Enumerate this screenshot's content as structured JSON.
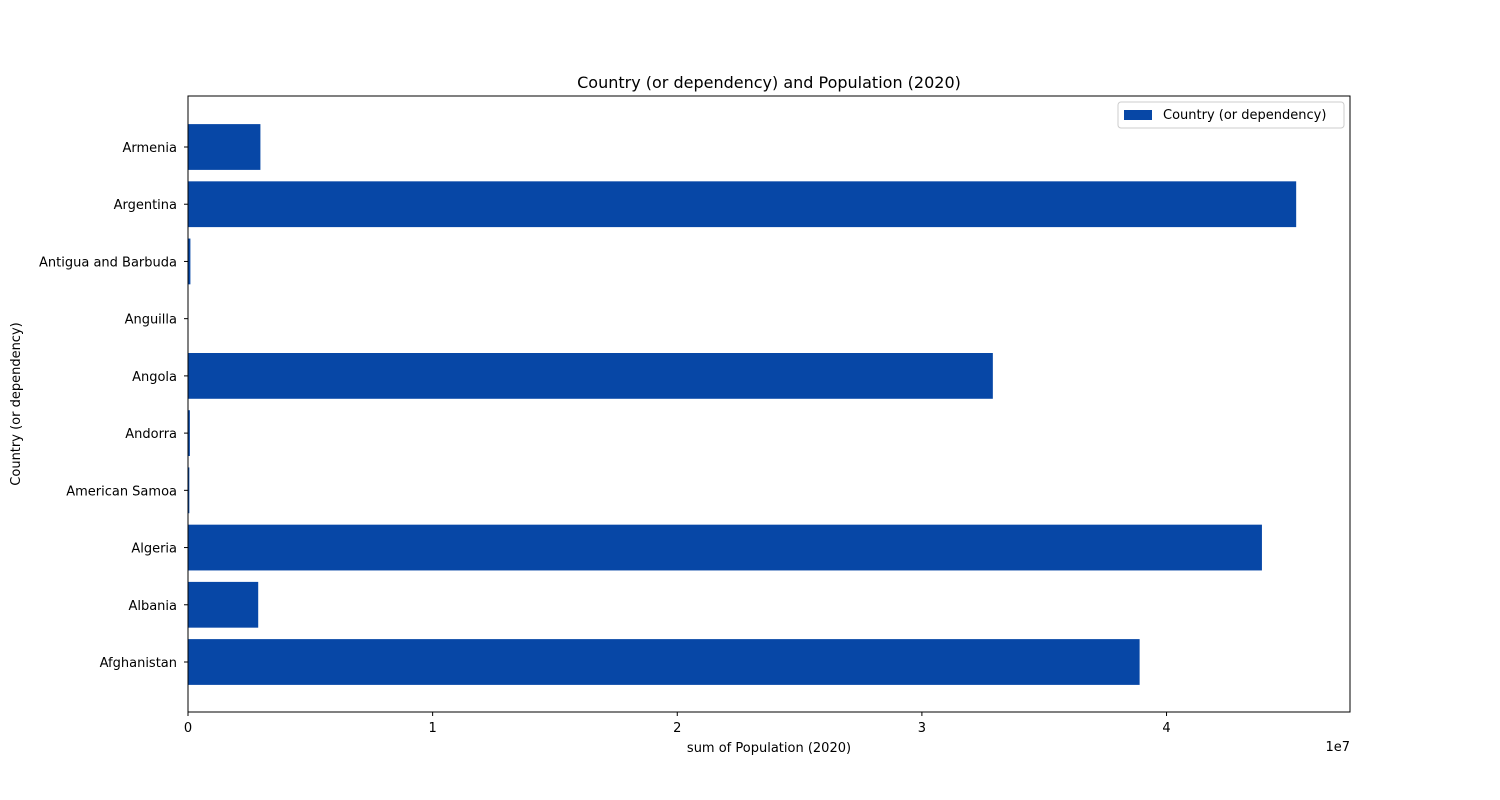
{
  "chart_data": {
    "type": "bar",
    "orientation": "horizontal",
    "title": "Country (or dependency) and Population (2020)",
    "xlabel": "sum of Population (2020)",
    "ylabel": "Country (or dependency)",
    "x_scale_label": "1e7",
    "x_scale_factor": 10000000,
    "xlim": [
      0,
      47500000
    ],
    "x_ticks": [
      0,
      10000000,
      20000000,
      30000000,
      40000000
    ],
    "x_tick_labels": [
      "0",
      "1",
      "2",
      "3",
      "4"
    ],
    "categories": [
      "Afghanistan",
      "Albania",
      "Algeria",
      "American Samoa",
      "Andorra",
      "Angola",
      "Anguilla",
      "Antigua and Barbuda",
      "Argentina",
      "Armenia"
    ],
    "series": [
      {
        "name": "Country (or dependency)",
        "color": "#0747a6",
        "values": [
          38900000,
          2870000,
          43900000,
          55000,
          77000,
          32900000,
          15000,
          98000,
          45300000,
          2960000
        ]
      }
    ],
    "grid": false,
    "legend_position": "top-right"
  }
}
